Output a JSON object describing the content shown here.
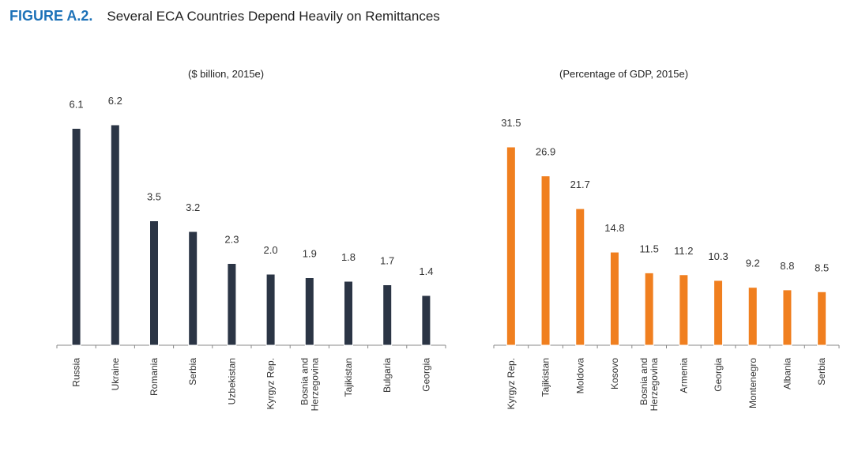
{
  "figure": {
    "label": "FIGURE A.2.",
    "title": "Several ECA Countries Depend Heavily on Remittances"
  },
  "chart_data": [
    {
      "type": "bar",
      "title": "($ billion, 2015e)",
      "categories": [
        "Russia",
        "Ukraine",
        "Romania",
        "Serbia",
        "Uzbekistan",
        "Kyrgyz Rep.",
        "Bosnia and\nHerzegovina",
        "Tajikistan",
        "Bulgaria",
        "Georgia"
      ],
      "values": [
        6.1,
        6.2,
        3.5,
        3.2,
        2.3,
        2.0,
        1.9,
        1.8,
        1.7,
        1.4
      ],
      "value_labels": [
        "6.1",
        "6.2",
        "3.5",
        "3.2",
        "2.3",
        "2.0",
        "1.9",
        "1.8",
        "1.7",
        "1.4"
      ],
      "ylim": [
        0,
        6.2
      ],
      "color": "#2b3545"
    },
    {
      "type": "bar",
      "title": "(Percentage of GDP, 2015e)",
      "categories": [
        "Kyrgyz Rep.",
        "Tajikistan",
        "Moldova",
        "Kosovo",
        "Bosnia and\nHerzegovina",
        "Armenia",
        "Georgia",
        "Montenegro",
        "Albania",
        "Serbia"
      ],
      "values": [
        31.5,
        26.9,
        21.7,
        14.8,
        11.5,
        11.2,
        10.3,
        9.2,
        8.8,
        8.5
      ],
      "value_labels": [
        "31.5",
        "26.9",
        "21.7",
        "14.8",
        "11.5",
        "11.2",
        "10.3",
        "9.2",
        "8.8",
        "8.5"
      ],
      "ylim": [
        0,
        31.5
      ],
      "color": "#f07f1f"
    }
  ]
}
